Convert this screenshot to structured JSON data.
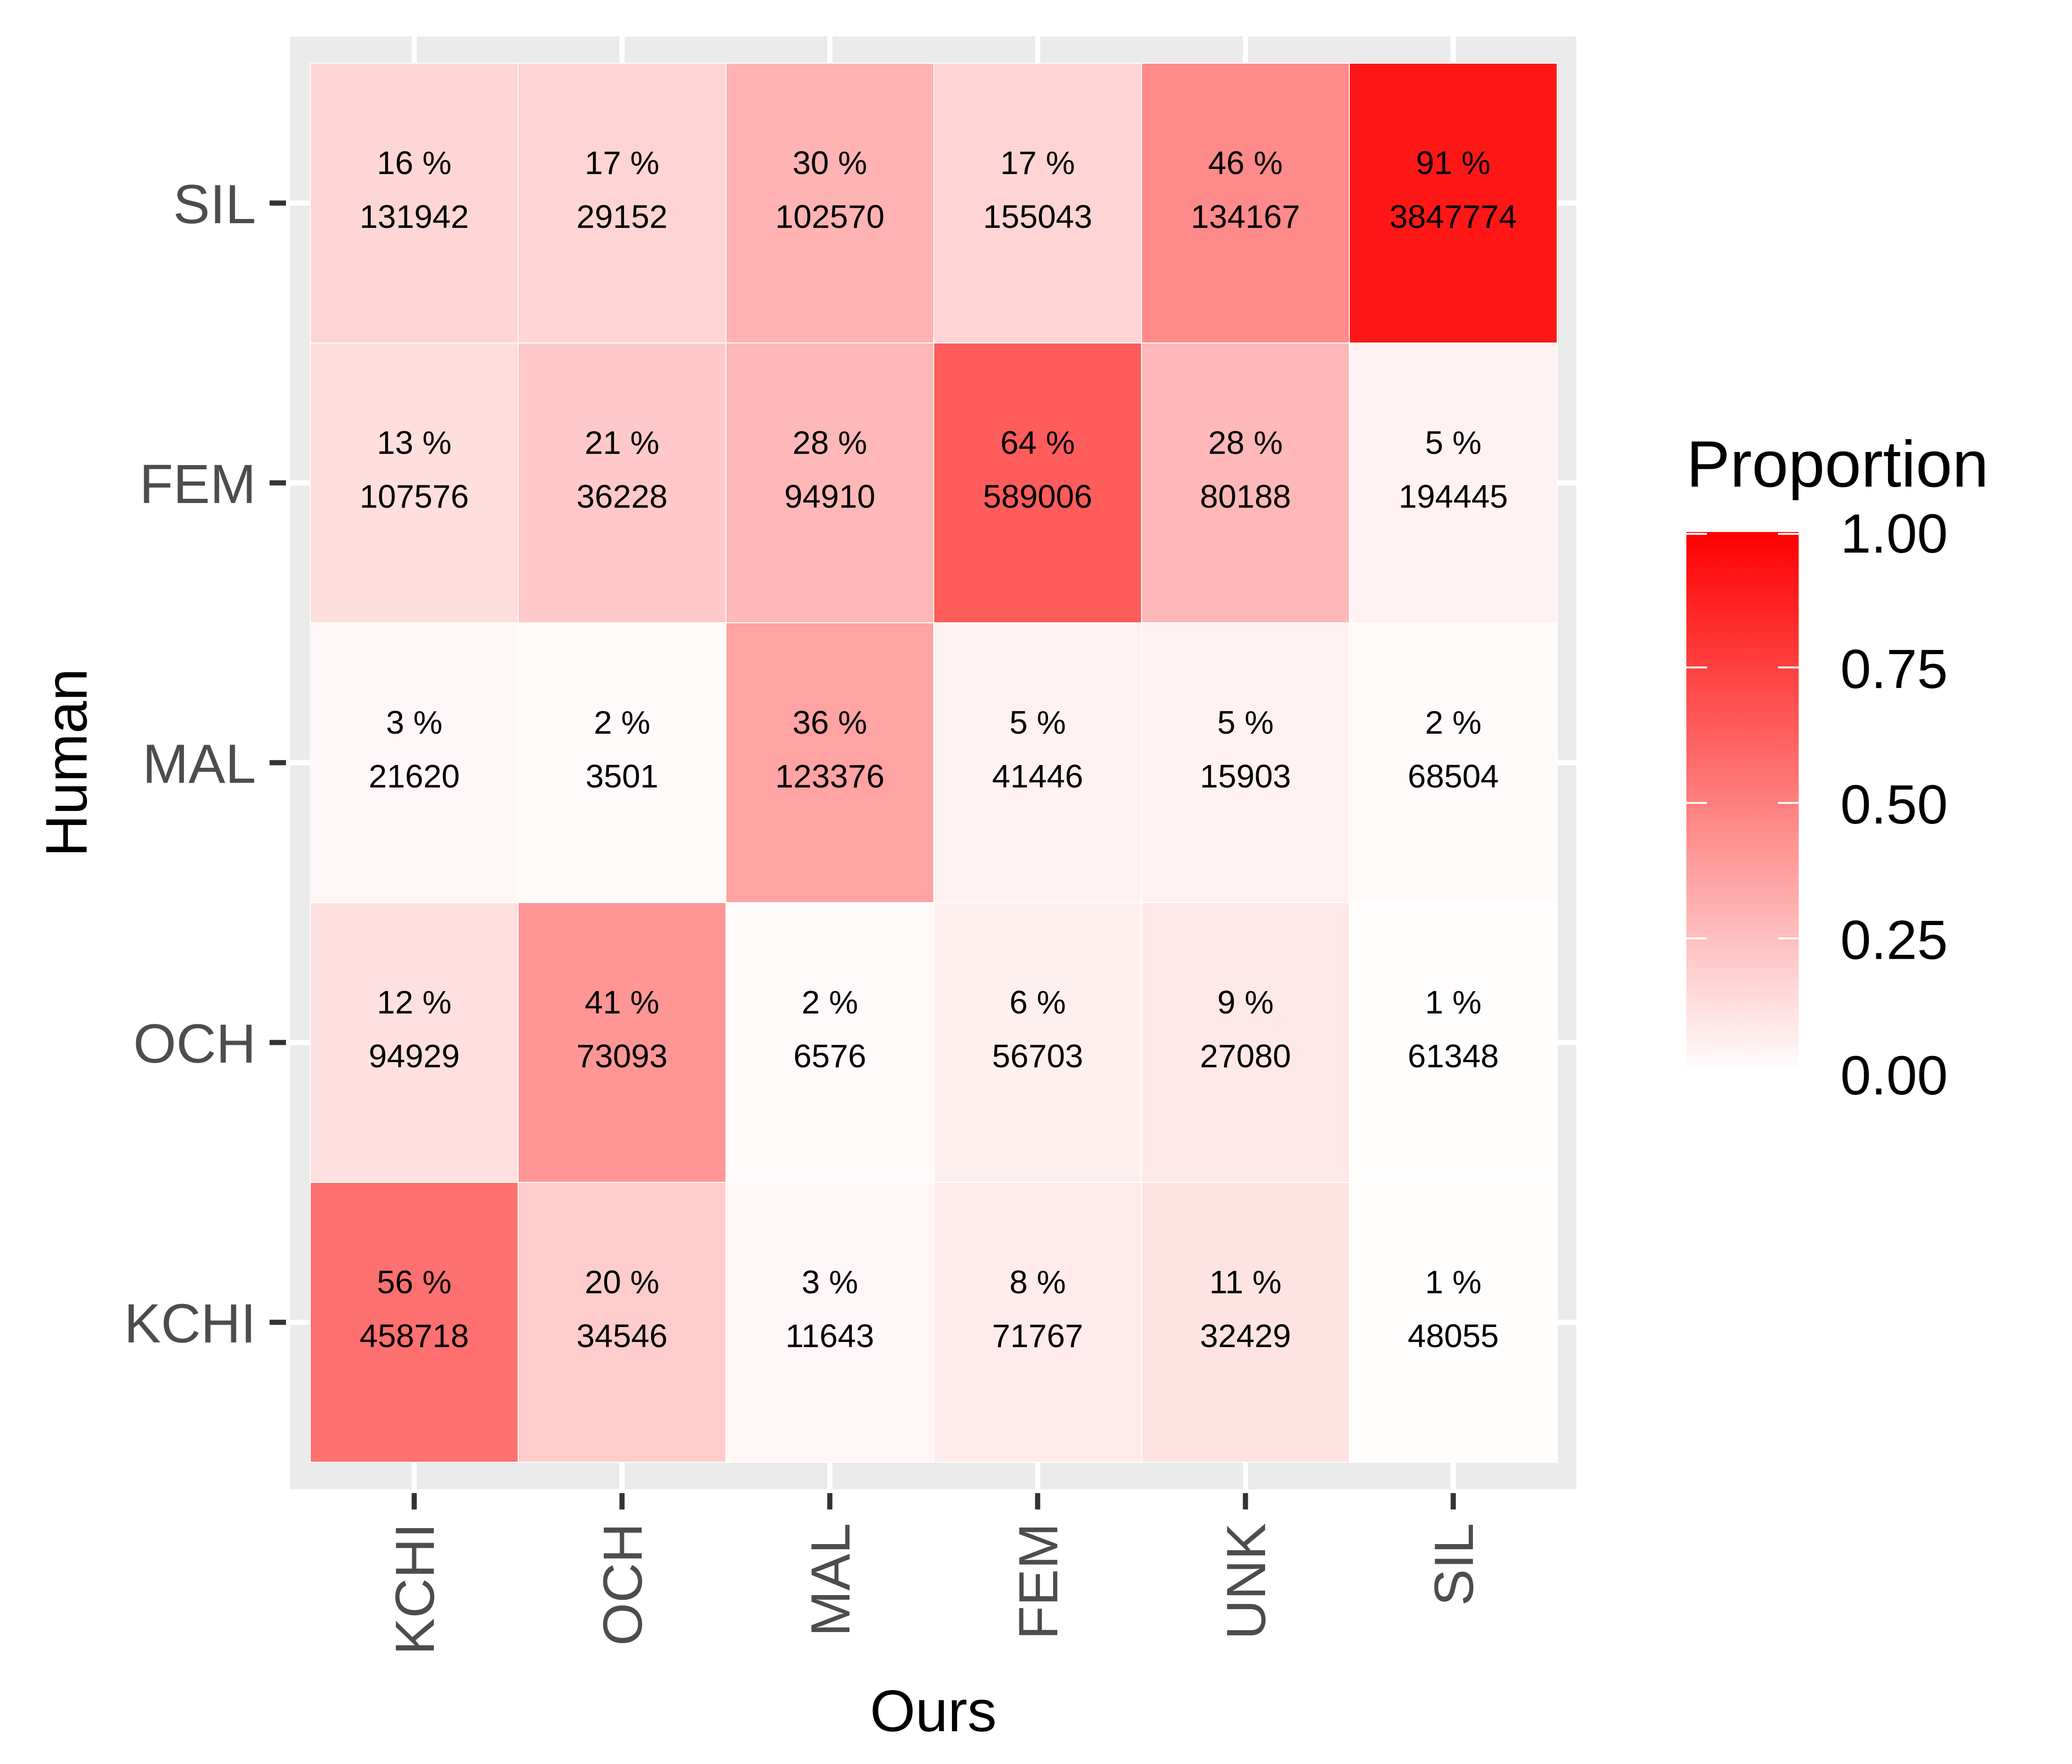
{
  "chart_data": {
    "type": "heatmap",
    "xlabel": "Ours",
    "ylabel": "Human",
    "x_categories": [
      "KCHI",
      "OCH",
      "MAL",
      "FEM",
      "UNK",
      "SIL"
    ],
    "y_categories": [
      "KCHI",
      "OCH",
      "MAL",
      "FEM",
      "SIL"
    ],
    "y_order_top_to_bottom": [
      "SIL",
      "FEM",
      "MAL",
      "OCH",
      "KCHI"
    ],
    "cells": [
      {
        "x": "KCHI",
        "y": "SIL",
        "proportion": 0.16,
        "percent": "16 %",
        "count": "131942"
      },
      {
        "x": "OCH",
        "y": "SIL",
        "proportion": 0.17,
        "percent": "17 %",
        "count": "29152"
      },
      {
        "x": "MAL",
        "y": "SIL",
        "proportion": 0.3,
        "percent": "30 %",
        "count": "102570"
      },
      {
        "x": "FEM",
        "y": "SIL",
        "proportion": 0.17,
        "percent": "17 %",
        "count": "155043"
      },
      {
        "x": "UNK",
        "y": "SIL",
        "proportion": 0.46,
        "percent": "46 %",
        "count": "134167"
      },
      {
        "x": "SIL",
        "y": "SIL",
        "proportion": 0.91,
        "percent": "91 %",
        "count": "3847774"
      },
      {
        "x": "KCHI",
        "y": "FEM",
        "proportion": 0.13,
        "percent": "13 %",
        "count": "107576"
      },
      {
        "x": "OCH",
        "y": "FEM",
        "proportion": 0.21,
        "percent": "21 %",
        "count": "36228"
      },
      {
        "x": "MAL",
        "y": "FEM",
        "proportion": 0.28,
        "percent": "28 %",
        "count": "94910"
      },
      {
        "x": "FEM",
        "y": "FEM",
        "proportion": 0.64,
        "percent": "64 %",
        "count": "589006"
      },
      {
        "x": "UNK",
        "y": "FEM",
        "proportion": 0.28,
        "percent": "28 %",
        "count": "80188"
      },
      {
        "x": "SIL",
        "y": "FEM",
        "proportion": 0.05,
        "percent": "5 %",
        "count": "194445"
      },
      {
        "x": "KCHI",
        "y": "MAL",
        "proportion": 0.03,
        "percent": "3 %",
        "count": "21620"
      },
      {
        "x": "OCH",
        "y": "MAL",
        "proportion": 0.02,
        "percent": "2 %",
        "count": "3501"
      },
      {
        "x": "MAL",
        "y": "MAL",
        "proportion": 0.36,
        "percent": "36 %",
        "count": "123376"
      },
      {
        "x": "FEM",
        "y": "MAL",
        "proportion": 0.05,
        "percent": "5 %",
        "count": "41446"
      },
      {
        "x": "UNK",
        "y": "MAL",
        "proportion": 0.05,
        "percent": "5 %",
        "count": "15903"
      },
      {
        "x": "SIL",
        "y": "MAL",
        "proportion": 0.02,
        "percent": "2 %",
        "count": "68504"
      },
      {
        "x": "KCHI",
        "y": "OCH",
        "proportion": 0.12,
        "percent": "12 %",
        "count": "94929"
      },
      {
        "x": "OCH",
        "y": "OCH",
        "proportion": 0.41,
        "percent": "41 %",
        "count": "73093"
      },
      {
        "x": "MAL",
        "y": "OCH",
        "proportion": 0.02,
        "percent": "2 %",
        "count": "6576"
      },
      {
        "x": "FEM",
        "y": "OCH",
        "proportion": 0.06,
        "percent": "6 %",
        "count": "56703"
      },
      {
        "x": "UNK",
        "y": "OCH",
        "proportion": 0.09,
        "percent": "9 %",
        "count": "27080"
      },
      {
        "x": "SIL",
        "y": "OCH",
        "proportion": 0.01,
        "percent": "1 %",
        "count": "61348"
      },
      {
        "x": "KCHI",
        "y": "KCHI",
        "proportion": 0.56,
        "percent": "56 %",
        "count": "458718"
      },
      {
        "x": "OCH",
        "y": "KCHI",
        "proportion": 0.2,
        "percent": "20 %",
        "count": "34546"
      },
      {
        "x": "MAL",
        "y": "KCHI",
        "proportion": 0.03,
        "percent": "3 %",
        "count": "11643"
      },
      {
        "x": "FEM",
        "y": "KCHI",
        "proportion": 0.08,
        "percent": "8 %",
        "count": "71767"
      },
      {
        "x": "UNK",
        "y": "KCHI",
        "proportion": 0.11,
        "percent": "11 %",
        "count": "32429"
      },
      {
        "x": "SIL",
        "y": "KCHI",
        "proportion": 0.01,
        "percent": "1 %",
        "count": "48055"
      }
    ],
    "legend": {
      "title": "Proportion",
      "placement": "right",
      "min": 0,
      "max": 1,
      "ticks": [
        "0.00",
        "0.25",
        "0.50",
        "0.75",
        "1.00"
      ],
      "low_color": "#ffffff",
      "high_color": "#ff0000"
    },
    "grid": true,
    "panel_background": "#ebebeb",
    "gridline_color": "#ffffff"
  }
}
